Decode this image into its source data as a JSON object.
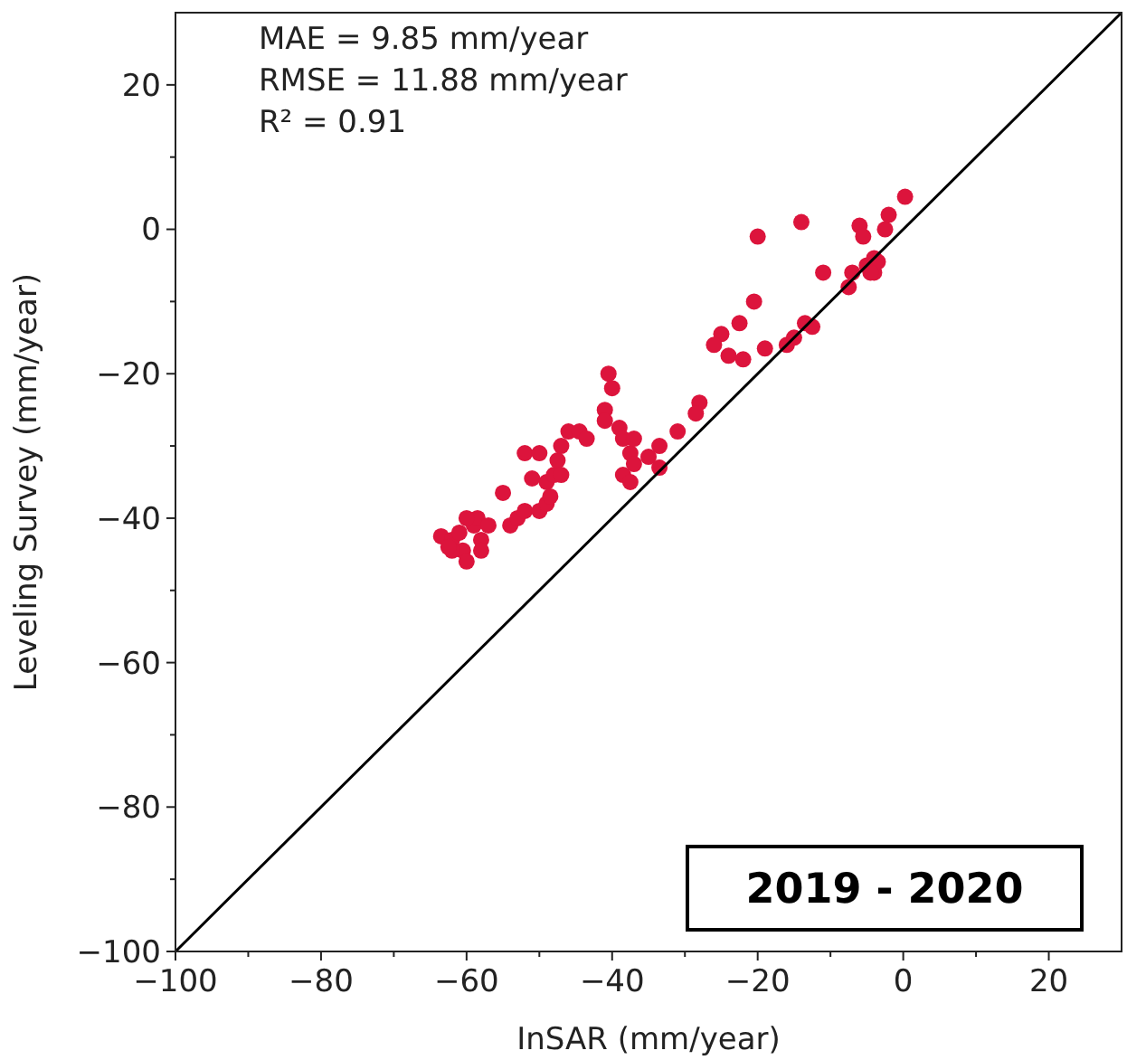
{
  "chart_data": {
    "type": "scatter",
    "xlabel": "InSAR (mm/year)",
    "ylabel": "Leveling Survey (mm/year)",
    "xlim": [
      -100,
      30
    ],
    "ylim": [
      -100,
      30
    ],
    "xticks": [
      -100,
      {
        "value": -90,
        "label": null
      },
      -80,
      {
        "value": -70,
        "label": null
      },
      -60,
      {
        "value": -50,
        "label": null
      },
      -40,
      {
        "value": -30,
        "label": null
      },
      -20,
      {
        "value": -10,
        "label": null
      },
      0,
      {
        "value": 10,
        "label": null
      },
      20
    ],
    "yticks": [
      -100,
      {
        "value": -90,
        "label": null
      },
      -80,
      {
        "value": -70,
        "label": null
      },
      -60,
      {
        "value": -50,
        "label": null
      },
      -40,
      {
        "value": -30,
        "label": null
      },
      -20,
      {
        "value": -10,
        "label": null
      },
      0,
      {
        "value": 10,
        "label": null
      },
      20
    ],
    "grid": false,
    "marker": "circle",
    "annotations": [
      "MAE = 9.85 mm/year",
      "RMSE = 11.88 mm/year",
      "R² = 0.91",
      "2019 - 2020"
    ],
    "series": [
      {
        "color": "#dc143c",
        "x": [
          -63.5,
          -62,
          -61,
          -60.5,
          -60,
          -59,
          -58.5,
          -58,
          -58,
          -62,
          -57,
          -55,
          -54,
          -53,
          -52,
          -50,
          -49,
          -51,
          -52,
          -50,
          -49,
          -48.5,
          -48,
          -47.5,
          -47,
          -46,
          -44.5,
          -43.5,
          -47,
          -40.5,
          -40,
          -41,
          -41,
          -39,
          -38.5,
          -37.5,
          -37,
          -38.5,
          -37.5,
          -37,
          -35,
          -33.5,
          -33.5,
          -31,
          -62.5,
          -60,
          -28,
          -28.5,
          0.25,
          -2,
          -2.5,
          -6,
          -5.5,
          -14,
          -20,
          -4,
          -4,
          -7,
          -7.5,
          -11,
          -20.5,
          -22.5,
          -25,
          -26,
          -24,
          -22,
          -19,
          -16,
          -15,
          -13.5,
          -12.5,
          -5,
          -3.5,
          -4.5
        ],
        "values": [
          -42.5,
          -43,
          -42,
          -44.5,
          -46,
          -41,
          -40,
          -43,
          -44.5,
          -44.5,
          -41,
          -36.5,
          -41,
          -40,
          -39,
          -39,
          -38,
          -34.5,
          -31,
          -31,
          -35,
          -37,
          -34,
          -32,
          -34,
          -28,
          -28,
          -29,
          -30,
          -20,
          -22,
          -25,
          -26.5,
          -27.5,
          -29,
          -31,
          -29,
          -34,
          -35,
          -32.5,
          -31.5,
          -30,
          -33,
          -28,
          -44,
          -40,
          -24,
          -25.5,
          4.5,
          2,
          0,
          0.5,
          -1,
          1,
          -1,
          -4,
          -6,
          -6,
          -8,
          -6,
          -10,
          -13,
          -14.5,
          -16,
          -17.5,
          -18,
          -16.5,
          -16,
          -15,
          -13,
          -13.5,
          -5,
          -4.5,
          -6
        ]
      },
      {
        "type": "line",
        "color": "#000000",
        "x": [
          -100,
          30
        ],
        "values": [
          -100,
          30
        ],
        "marker": "none"
      }
    ]
  }
}
